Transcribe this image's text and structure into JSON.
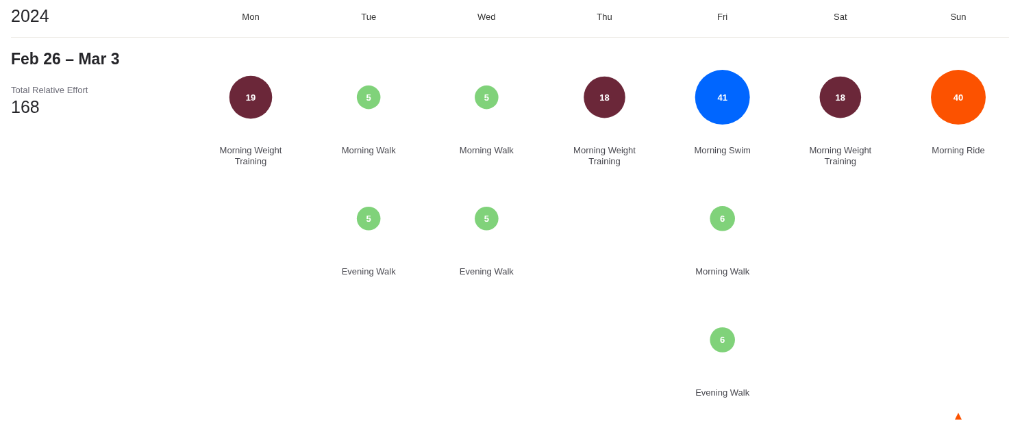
{
  "chart_data": {
    "type": "other",
    "title": "2024",
    "subtitle": "Feb 26 – Mar 3",
    "categories": [
      "Mon",
      "Tue",
      "Wed",
      "Thu",
      "Fri",
      "Sat",
      "Sun"
    ],
    "data_labels": true,
    "series": [
      {
        "x": [
          "Mon",
          "Tue",
          "Wed",
          "Thu",
          "Fri",
          "Sat",
          "Sun",
          "Tue",
          "Wed",
          "Fri",
          "Fri"
        ],
        "values": [
          19,
          5,
          5,
          18,
          41,
          18,
          40,
          5,
          5,
          6,
          6
        ],
        "colors": [
          "#6b2739",
          "#80d27a",
          "#80d27a",
          "#6b2739",
          "#0066ff",
          "#6b2739",
          "#fc5200",
          "#80d27a",
          "#80d27a",
          "#80d27a",
          "#80d27a"
        ]
      }
    ],
    "annotations": [
      "Total Relative Effort",
      "168",
      "Morning Weight Training",
      "Morning Walk",
      "Morning Walk",
      "Morning Weight Training",
      "Morning Swim",
      "Morning Weight Training",
      "Morning Ride",
      "Evening Walk",
      "Evening Walk",
      "Morning Walk",
      "Evening Walk"
    ]
  }
}
